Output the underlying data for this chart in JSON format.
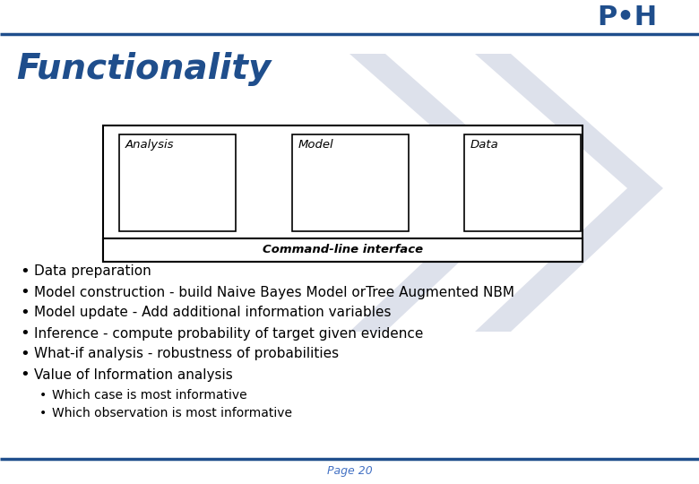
{
  "title": "Functionality",
  "title_color": "#1F4E8C",
  "title_fontsize": 28,
  "title_style": "italic",
  "title_weight": "bold",
  "background_color": "#ffffff",
  "top_line_color": "#1F4E8C",
  "bottom_line_color": "#1F4E8C",
  "diagram_boxes": [
    "Analysis",
    "Model",
    "Data"
  ],
  "cli_label": "Command-line interface",
  "bullet_items": [
    "Data preparation",
    "Model construction - build Naive Bayes Model orTree Augmented NBM",
    "Model update - Add additional information variables",
    "Inference - compute probability of target given evidence",
    "What-if analysis - robustness of probabilities",
    "Value of Information analysis"
  ],
  "sub_bullet_items": [
    "Which case is most informative",
    "Which observation is most informative"
  ],
  "bullet_fontsize": 11,
  "sub_bullet_fontsize": 10,
  "page_label": "Page 20",
  "page_label_color": "#4472C4",
  "page_label_fontsize": 9,
  "watermark_color": "#d8dce8",
  "outer_box_color": "#000000",
  "inner_box_color": "#000000",
  "logo_p_color": "#1F4E8C",
  "logo_h_color": "#1F4E8C",
  "logo_dot_color": "#1F4E8C"
}
